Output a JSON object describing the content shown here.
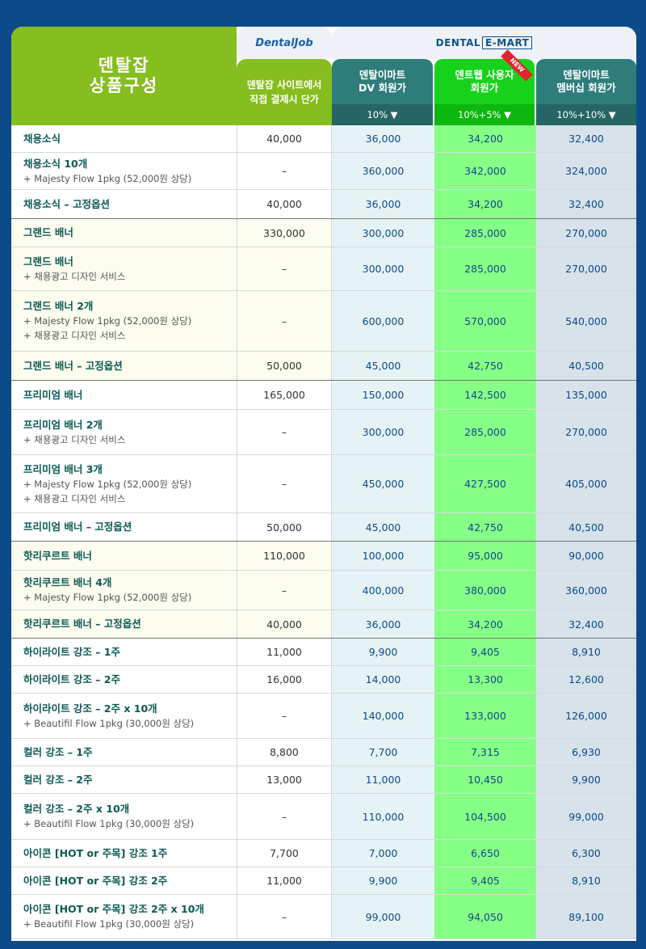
{
  "header": {
    "title_line1": "덴탈잡",
    "title_line2": "상품구성",
    "dentaljob_logo": "DentalJob",
    "dentaljob_col_line1": "덴탈잡 사이트에서",
    "dentaljob_col_line2": "직접 결제시 단가",
    "emart_logo_part1": "DENTAL",
    "emart_logo_part2": "E-MART",
    "new_badge": "NEW",
    "columns": [
      {
        "name_line1": "덴탈이마트",
        "name_line2": "DV 회원가",
        "discount": "10% ▼"
      },
      {
        "name_line1": "덴트웹 사용자",
        "name_line2": "회원가",
        "discount": "10%+5% ▼"
      },
      {
        "name_line1": "덴탈이마트",
        "name_line2": "멤버십 회원가",
        "discount": "10%+10% ▼"
      }
    ]
  },
  "colors": {
    "green": "#86bd1f",
    "teal": "#2e7d7a",
    "bright_green": "#17d21a",
    "navy": "#0d4a8a"
  },
  "rows": [
    {
      "label": "채용소식",
      "sub": [],
      "values": [
        "40,000",
        "36,000",
        "34,200",
        "32,400"
      ],
      "h": 34,
      "g": 1
    },
    {
      "label": "채용소식 10개",
      "sub": [
        "+ Majesty Flow 1pkg (52,000원 상당)"
      ],
      "values": [
        "–",
        "360,000",
        "342,000",
        "324,000"
      ],
      "h": 46,
      "g": 1
    },
    {
      "label": "채용소식 – 고정옵션",
      "sub": [],
      "values": [
        "40,000",
        "36,000",
        "34,200",
        "32,400"
      ],
      "h": 36,
      "g": 1,
      "sec": true
    },
    {
      "label": "그랜드 배너",
      "sub": [],
      "values": [
        "330,000",
        "300,000",
        "285,000",
        "270,000"
      ],
      "h": 35,
      "g": 2
    },
    {
      "label": "그랜드 배너",
      "sub": [
        "+ 채용광고 디자인 서비스"
      ],
      "values": [
        "–",
        "300,000",
        "285,000",
        "270,000"
      ],
      "h": 54,
      "g": 2
    },
    {
      "label": "그랜드 배너 2개",
      "sub": [
        "+ Majesty Flow 1pkg (52,000원 상당)",
        "+ 채용광고 디자인 서비스"
      ],
      "values": [
        "–",
        "600,000",
        "570,000",
        "540,000"
      ],
      "h": 75,
      "g": 2
    },
    {
      "label": "그랜드 배너 – 고정옵션",
      "sub": [],
      "values": [
        "50,000",
        "45,000",
        "42,750",
        "40,500"
      ],
      "h": 36,
      "g": 2,
      "sec": true
    },
    {
      "label": "프리미엄 배너",
      "sub": [],
      "values": [
        "165,000",
        "150,000",
        "142,500",
        "135,000"
      ],
      "h": 36,
      "g": 1
    },
    {
      "label": "프리미엄 배너 2개",
      "sub": [
        "+ 채용광고 디자인 서비스"
      ],
      "values": [
        "–",
        "300,000",
        "285,000",
        "270,000"
      ],
      "h": 56,
      "g": 1
    },
    {
      "label": "프리미엄 배너 3개",
      "sub": [
        "+ Majesty Flow 1pkg (52,000원 상당)",
        "+ 채용광고 디자인 서비스"
      ],
      "values": [
        "–",
        "450,000",
        "427,500",
        "405,000"
      ],
      "h": 72,
      "g": 1
    },
    {
      "label": "프리미엄 배너 – 고정옵션",
      "sub": [],
      "values": [
        "50,000",
        "45,000",
        "42,750",
        "40,500"
      ],
      "h": 35,
      "g": 1,
      "sec": true
    },
    {
      "label": "핫리쿠르트 배너",
      "sub": [],
      "values": [
        "110,000",
        "100,000",
        "95,000",
        "90,000"
      ],
      "h": 36,
      "g": 2
    },
    {
      "label": "핫리쿠르트 배너 4개",
      "sub": [
        "+ Majesty Flow 1pkg (52,000원 상당)"
      ],
      "values": [
        "–",
        "400,000",
        "380,000",
        "360,000"
      ],
      "h": 49,
      "g": 2
    },
    {
      "label": "핫리쿠르트 배너 – 고정옵션",
      "sub": [],
      "values": [
        "40,000",
        "36,000",
        "34,200",
        "32,400"
      ],
      "h": 35,
      "g": 2,
      "sec": true
    },
    {
      "label": "하이라이트 강조 – 1주",
      "sub": [],
      "values": [
        "11,000",
        "9,900",
        "9,405",
        "8,910"
      ],
      "h": 34,
      "g": 1
    },
    {
      "label": "하이라이트 강조 – 2주",
      "sub": [],
      "values": [
        "16,000",
        "14,000",
        "13,300",
        "12,600"
      ],
      "h": 34,
      "g": 1
    },
    {
      "label": "하이라이트 강조 – 2주 x 10개",
      "sub": [
        "+ Beautifil Flow 1pkg (30,000원 상당)"
      ],
      "values": [
        "–",
        "140,000",
        "133,000",
        "126,000"
      ],
      "h": 56,
      "g": 1
    },
    {
      "label": "컬러 강조 – 1주",
      "sub": [],
      "values": [
        "8,800",
        "7,700",
        "7,315",
        "6,930"
      ],
      "h": 34,
      "g": 1
    },
    {
      "label": "컬러 강조 – 2주",
      "sub": [],
      "values": [
        "13,000",
        "11,000",
        "10,450",
        "9,900"
      ],
      "h": 34,
      "g": 1
    },
    {
      "label": "컬러 강조 – 2주 x 10개",
      "sub": [
        "+ Beautifil Flow 1pkg (30,000원 상당)"
      ],
      "values": [
        "–",
        "110,000",
        "104,500",
        "99,000"
      ],
      "h": 57,
      "g": 1
    },
    {
      "label": "아이콘 [HOT or 주목] 강조 1주",
      "sub": [],
      "values": [
        "7,700",
        "7,000",
        "6,650",
        "6,300"
      ],
      "h": 34,
      "g": 1
    },
    {
      "label": "아이콘 [HOT or 주목] 강조 2주",
      "sub": [],
      "values": [
        "11,000",
        "9,900",
        "9,405",
        "8,910"
      ],
      "h": 34,
      "g": 1
    },
    {
      "label": "아이콘 [HOT or 주목] 강조 2주 x 10개",
      "sub": [
        "+ Beautifil Flow 1pkg (30,000원 상당)"
      ],
      "values": [
        "–",
        "99,000",
        "94,050",
        "89,100"
      ],
      "h": 55,
      "g": 1
    }
  ]
}
